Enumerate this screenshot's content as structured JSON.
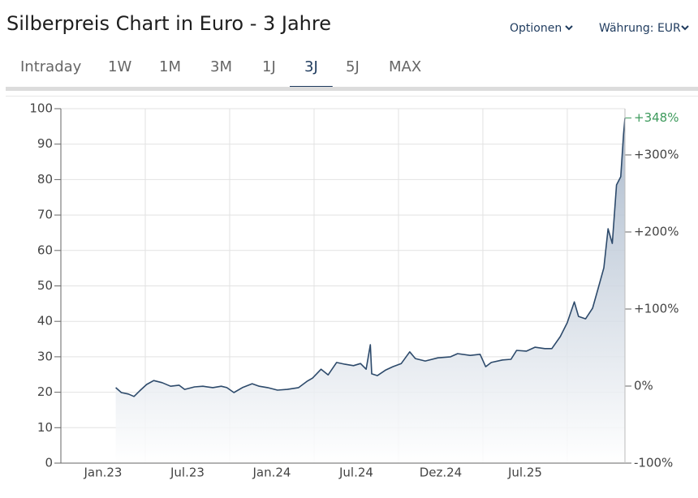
{
  "header": {
    "title": "Silberpreis Chart in Euro - 3 Jahre",
    "options": "Optionen",
    "currency": "Währung: EUR"
  },
  "tabs": {
    "items": [
      "Intraday",
      "1W",
      "1M",
      "3M",
      "1J",
      "3J",
      "5J",
      "MAX"
    ],
    "active": 5
  },
  "chart_data": {
    "type": "line",
    "x": [
      0.9,
      1.3,
      1.8,
      2.2,
      2.6,
      3.1,
      3.6,
      4.2,
      4.8,
      5.4,
      5.8,
      6.5,
      7.1,
      7.8,
      8.4,
      8.8,
      9.3,
      9.9,
      10.6,
      11.1,
      11.7,
      12.4,
      13.1,
      13.9,
      14.5,
      14.9,
      15.5,
      16.0,
      16.6,
      17.2,
      17.8,
      18.3,
      18.7,
      19.0,
      19.1,
      19.5,
      20.1,
      20.6,
      21.2,
      21.8,
      22.2,
      22.9,
      23.8,
      24.7,
      25.2,
      26.1,
      26.8,
      27.2,
      27.6,
      28.4,
      29.0,
      29.4,
      30.1,
      30.7,
      31.4,
      31.9,
      32.5,
      33.0,
      33.5,
      33.8,
      34.3,
      34.8,
      35.2,
      35.6,
      35.9,
      36.2,
      36.5,
      36.8,
      37.0,
      37.1
    ],
    "series": [
      {
        "name": "Silberpreis",
        "color": "#2d4a6b",
        "values": [
          21.3,
          19.9,
          19.5,
          18.8,
          20.4,
          22.2,
          23.3,
          22.7,
          21.7,
          22.0,
          20.8,
          21.5,
          21.7,
          21.3,
          21.7,
          21.3,
          19.9,
          21.3,
          22.4,
          21.7,
          21.3,
          20.6,
          20.8,
          21.3,
          23.1,
          24.0,
          26.5,
          24.9,
          28.4,
          27.9,
          27.5,
          28.1,
          26.5,
          33.4,
          25.2,
          24.7,
          26.3,
          27.2,
          28.1,
          31.4,
          29.5,
          28.8,
          29.7,
          30.0,
          30.9,
          30.4,
          30.7,
          27.2,
          28.4,
          29.1,
          29.3,
          31.8,
          31.6,
          32.7,
          32.3,
          32.3,
          35.7,
          39.6,
          45.5,
          41.4,
          40.7,
          43.7,
          49.4,
          55.1,
          66.1,
          62.0,
          78.5,
          80.8,
          92.9,
          97.4
        ]
      }
    ],
    "xlim": [
      -3,
      37.1
    ],
    "xticks": [
      {
        "value": 0,
        "label": "Jan.23"
      },
      {
        "value": 6,
        "label": "Jul.23"
      },
      {
        "value": 12,
        "label": "Jan.24"
      },
      {
        "value": 18,
        "label": "Jul.24"
      },
      {
        "value": 24,
        "label": "Dez.24"
      },
      {
        "value": 30,
        "label": "Jul.25"
      }
    ],
    "xgrid": [
      3,
      9,
      15,
      21,
      27,
      33
    ],
    "ylim": [
      0,
      100
    ],
    "yticks": [
      0,
      10,
      20,
      30,
      40,
      50,
      60,
      70,
      80,
      90,
      100
    ],
    "y2lim": [
      -100,
      360
    ],
    "y2ticks": [
      {
        "value": -100,
        "label": "-100%"
      },
      {
        "value": 0,
        "label": "0%"
      },
      {
        "value": 100,
        "label": "+100%"
      },
      {
        "value": 200,
        "label": "+200%"
      },
      {
        "value": 300,
        "label": "+300%"
      }
    ],
    "annotations": [
      {
        "value": 348,
        "label": "+348%",
        "color": "#3d9a5c"
      }
    ],
    "grid": true
  }
}
